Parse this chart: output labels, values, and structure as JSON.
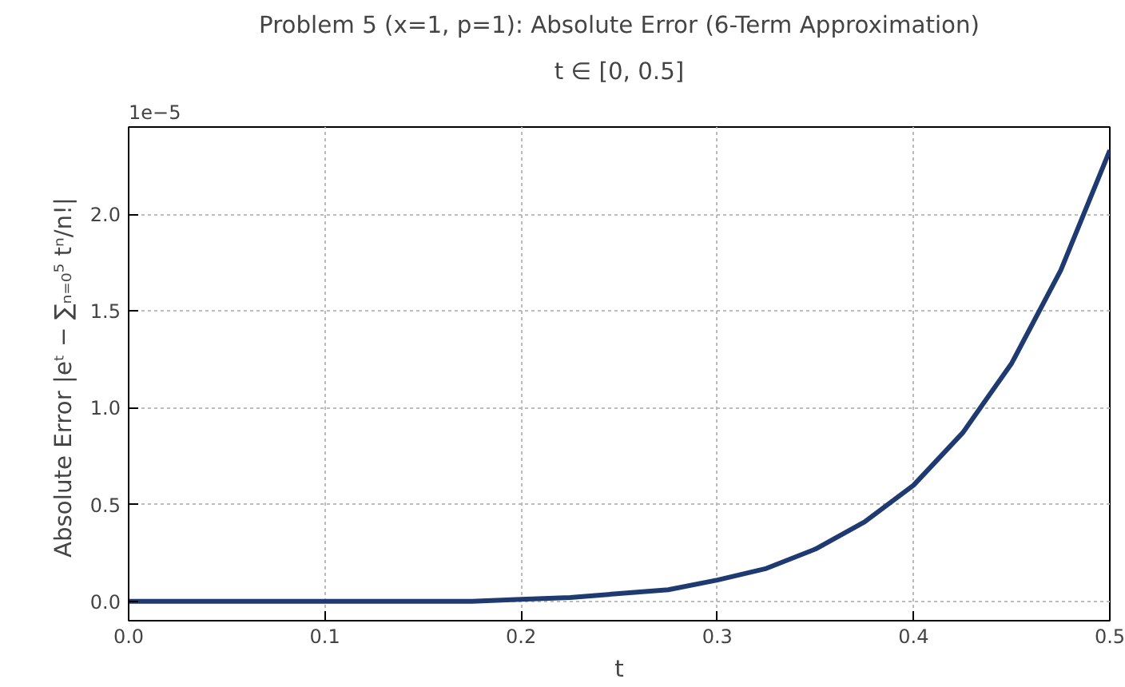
{
  "chart_data": {
    "type": "line",
    "title": "Problem 5 (x=1, p=1): Absolute Error (6-Term Approximation)",
    "subtitle": "t ∈ [0, 0.5]",
    "xlabel": "t",
    "ylabel": "Absolute Error  |eᵗ − ∑ₙ₌₀⁵ tⁿ/n!|",
    "x": [
      0,
      0.05,
      0.1,
      0.15,
      0.175,
      0.2,
      0.225,
      0.25,
      0.275,
      0.3,
      0.325,
      0.35,
      0.375,
      0.4,
      0.425,
      0.45,
      0.475,
      0.5
    ],
    "series": [
      {
        "color": "#1f3a70",
        "values": [
          0,
          0,
          0,
          0,
          0,
          0.01,
          0.02,
          0.04,
          0.06,
          0.11,
          0.17,
          0.27,
          0.41,
          0.6,
          0.87,
          1.23,
          1.71,
          2.33
        ]
      }
    ],
    "xlim": [
      0,
      0.5
    ],
    "ylim": [
      -0.1,
      2.45
    ],
    "xticks": [
      {
        "value": 0,
        "label": "0.0"
      },
      0.1,
      0.2,
      0.3,
      0.4,
      0.5
    ],
    "yticks": [
      {
        "value": 0,
        "label": "0.0"
      },
      0.5,
      {
        "value": 1,
        "label": "1.0"
      },
      1.5,
      {
        "value": 2,
        "label": "2.0"
      }
    ],
    "annotations": [
      "1e−5"
    ],
    "grid": true,
    "line_style": "solid",
    "marker": "none"
  }
}
